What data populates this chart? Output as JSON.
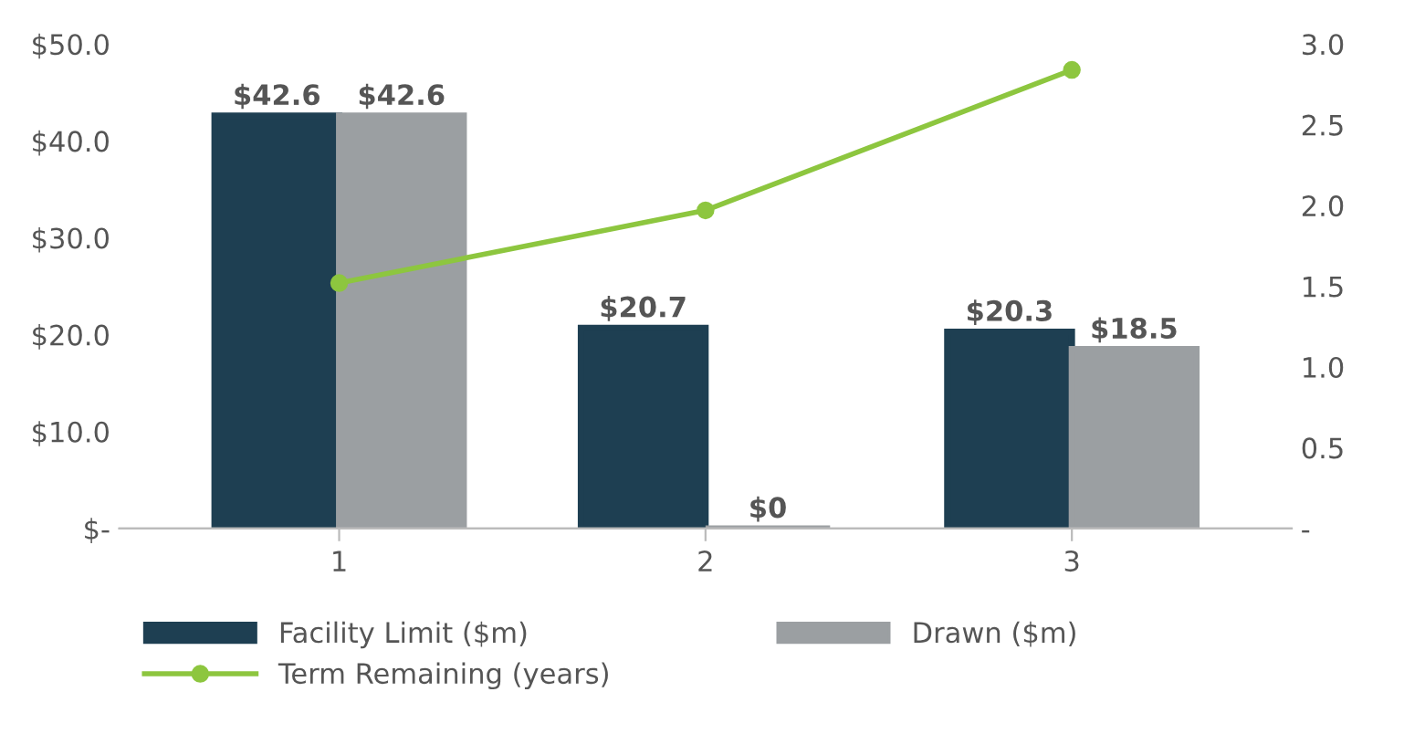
{
  "chart_data": {
    "type": "bar",
    "categories": [
      "1",
      "2",
      "3"
    ],
    "series": [
      {
        "name": "Facility Limit ($m)",
        "color": "#1e3f52",
        "values": [
          42.6,
          20.7,
          20.3
        ],
        "value_labels": [
          "$42.6",
          "$20.7",
          "$20.3"
        ]
      },
      {
        "name": "Drawn ($m)",
        "color": "#9b9fa2",
        "values": [
          42.6,
          0,
          18.5
        ],
        "value_labels": [
          "$42.6",
          "$0",
          "$18.5"
        ]
      },
      {
        "name": "Term Remaining (years)",
        "type": "line",
        "axis": "y2",
        "color": "#8dc63f",
        "marker": "circle",
        "values": [
          1.52,
          1.97,
          2.84
        ]
      }
    ],
    "ylim": [
      0,
      50
    ],
    "yticks": [
      {
        "value": 0,
        "label": "$-"
      },
      {
        "value": 10,
        "label": "$10.0"
      },
      {
        "value": 20,
        "label": "$20.0"
      },
      {
        "value": 30,
        "label": "$30.0"
      },
      {
        "value": 40,
        "label": "$40.0"
      },
      {
        "value": 50,
        "label": "$50.0"
      }
    ],
    "y2lim": [
      0,
      3
    ],
    "y2ticks": [
      {
        "value": 0,
        "label": "-"
      },
      {
        "value": 0.5,
        "label": "0.5"
      },
      {
        "value": 1,
        "label": "1.0"
      },
      {
        "value": 1.5,
        "label": "1.5"
      },
      {
        "value": 2,
        "label": "2.0"
      },
      {
        "value": 2.5,
        "label": "2.5"
      },
      {
        "value": 3,
        "label": "3.0"
      }
    ],
    "grid": false,
    "legend": "bottom"
  }
}
